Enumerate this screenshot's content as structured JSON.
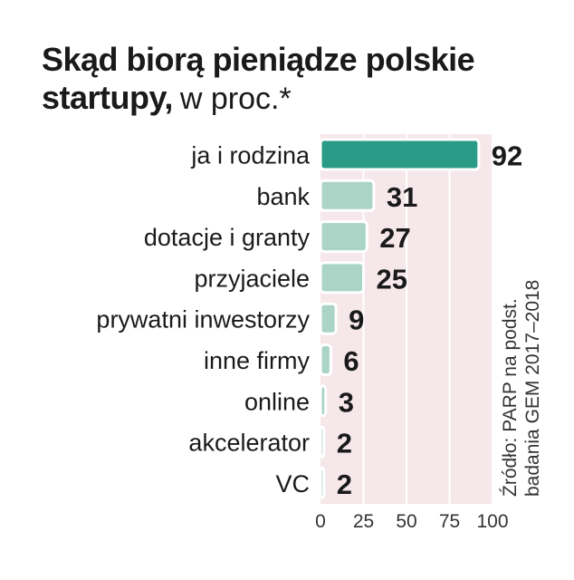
{
  "chart_data": {
    "type": "bar",
    "orientation": "horizontal",
    "title": "Skąd biorą pieniądze polskie startupy,",
    "title_line1": "Skąd biorą pieniądze polskie",
    "title_line2": "startupy,",
    "subtitle": "w proc.*",
    "categories": [
      "ja i rodzina",
      "bank",
      "dotacje i granty",
      "przyjaciele",
      "prywatni inwestorzy",
      "inne firmy",
      "online",
      "akcelerator",
      "VC"
    ],
    "values": [
      92,
      31,
      27,
      25,
      9,
      6,
      3,
      2,
      2
    ],
    "value_labels": [
      "92",
      "31",
      "27",
      "25",
      "9",
      "6",
      "3",
      "2",
      "2"
    ],
    "xlim": [
      0,
      100
    ],
    "xticks": [
      0,
      25,
      50,
      75,
      100
    ],
    "xtick_labels": [
      "0",
      "25",
      "50",
      "75",
      "100"
    ],
    "grid": true,
    "source": "Źródło: PARP na podst. badania GEM 2017–2018",
    "source_line1": "Źródło: PARP na podst.",
    "source_line2": "badania GEM 2017–2018",
    "colors": {
      "highlight": "#2a9b86",
      "bar": "#aad4c6",
      "background": "#f6e8ea",
      "grid": "#ffffff",
      "bar_border": "#ffffff",
      "text": "#1a1a1a"
    }
  }
}
